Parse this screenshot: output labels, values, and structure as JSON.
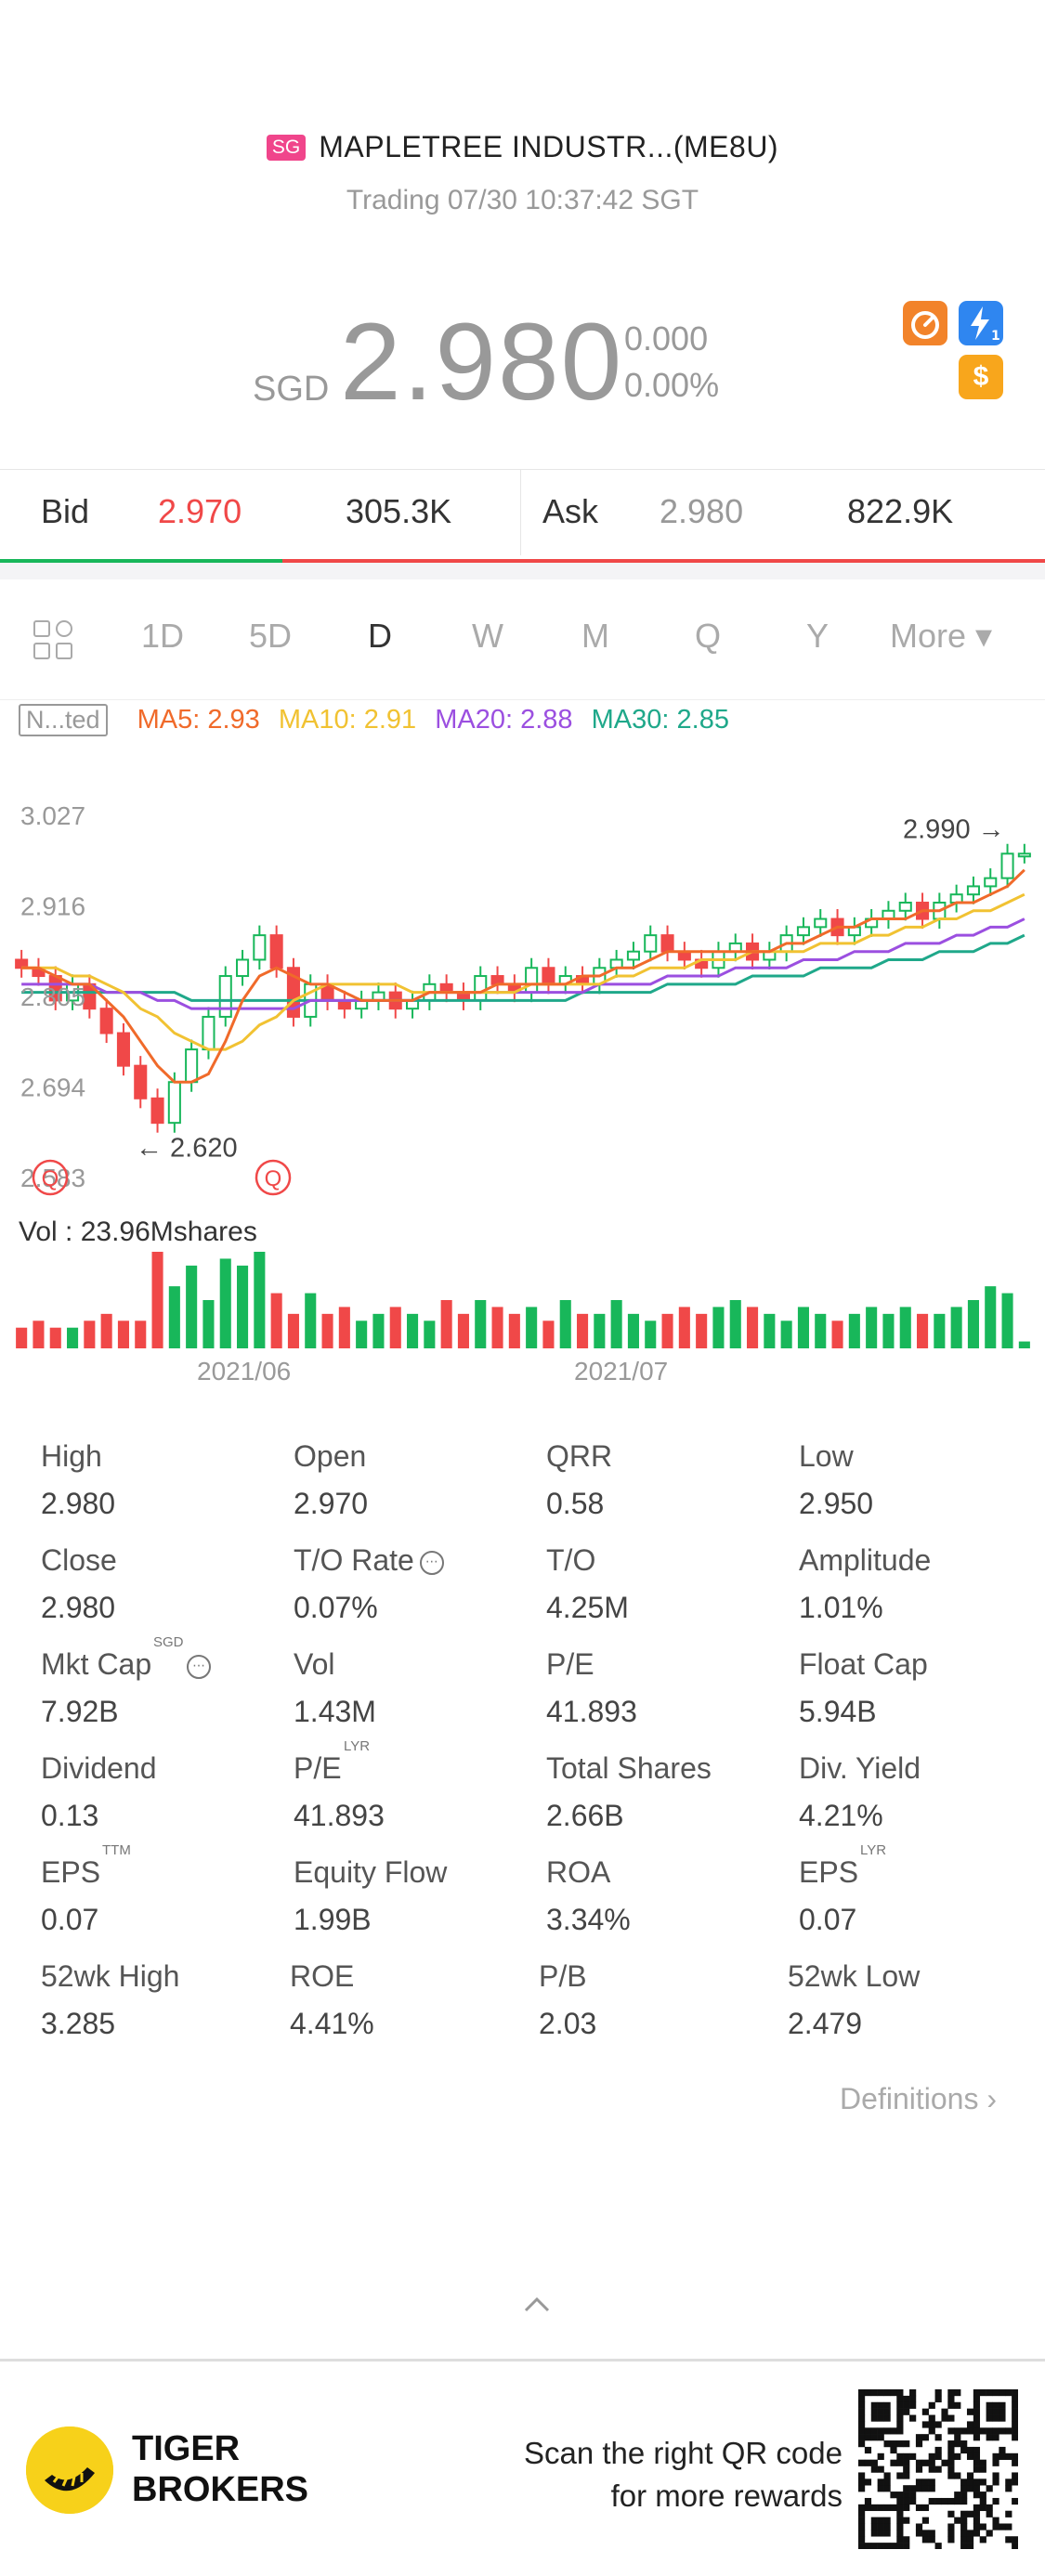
{
  "header": {
    "market_badge": "SG",
    "symbol": "MAPLETREE INDUSTR...(ME8U)",
    "status": "Trading 07/30 10:37:42 SGT"
  },
  "quote": {
    "currency": "SGD",
    "price": "2.980",
    "change": "0.000",
    "change_pct": "0.00%"
  },
  "icons": [
    "gauge-icon",
    "lightning-icon",
    "dollar-icon"
  ],
  "icon_labels": {
    "lightning": "1",
    "dollar": "$"
  },
  "colors": {
    "up": "#f04848",
    "down": "#18b75a",
    "ma5": "#f06a2a",
    "ma10": "#f1c232",
    "ma20": "#9b4fe0",
    "ma30": "#1fa88a"
  },
  "bid_ask": {
    "bid_label": "Bid",
    "bid_price": "2.970",
    "bid_size": "305.3K",
    "ask_label": "Ask",
    "ask_price": "2.980",
    "ask_size": "822.9K",
    "bid_fraction": 0.27
  },
  "tabs": [
    "1D",
    "5D",
    "D",
    "W",
    "M",
    "Q",
    "Y",
    "More ▾"
  ],
  "active_tab": "D",
  "ma": {
    "adjust_label": "N...ted",
    "ma5": "MA5: 2.93",
    "ma10": "MA10: 2.91",
    "ma20": "MA20: 2.88",
    "ma30": "MA30: 2.85"
  },
  "chart_data": {
    "type": "candlestick",
    "y_ticks": [
      "3.027",
      "2.916",
      "2.805",
      "2.694",
      "2.583"
    ],
    "ylim": [
      2.583,
      3.027
    ],
    "high_marker": "2.990",
    "low_marker": "← 2.620",
    "event_markers": [
      "Q",
      "Q"
    ],
    "volume_label": "Vol  : 23.96Mshares",
    "x_labels": [
      "2021/06",
      "2021/07"
    ],
    "closes": [
      2.84,
      2.83,
      2.8,
      2.82,
      2.79,
      2.76,
      2.72,
      2.68,
      2.65,
      2.7,
      2.74,
      2.78,
      2.83,
      2.85,
      2.88,
      2.84,
      2.78,
      2.82,
      2.8,
      2.79,
      2.8,
      2.81,
      2.79,
      2.8,
      2.82,
      2.81,
      2.8,
      2.83,
      2.82,
      2.81,
      2.84,
      2.82,
      2.83,
      2.82,
      2.84,
      2.85,
      2.86,
      2.88,
      2.86,
      2.85,
      2.84,
      2.86,
      2.87,
      2.85,
      2.86,
      2.88,
      2.89,
      2.9,
      2.88,
      2.89,
      2.9,
      2.91,
      2.92,
      2.9,
      2.92,
      2.93,
      2.94,
      2.95,
      2.98,
      2.98
    ],
    "volumes": [
      3,
      4,
      3,
      3,
      4,
      5,
      4,
      4,
      14,
      9,
      12,
      7,
      13,
      12,
      14,
      8,
      5,
      8,
      5,
      6,
      4,
      5,
      6,
      5,
      4,
      7,
      5,
      7,
      6,
      5,
      6,
      4,
      7,
      5,
      5,
      7,
      5,
      4,
      5,
      6,
      5,
      6,
      7,
      6,
      5,
      4,
      6,
      5,
      4,
      5,
      6,
      5,
      6,
      5,
      5,
      6,
      7,
      9,
      8,
      1
    ],
    "ma5": [
      2.84,
      2.84,
      2.83,
      2.82,
      2.82,
      2.8,
      2.78,
      2.75,
      2.72,
      2.7,
      2.7,
      2.71,
      2.75,
      2.8,
      2.83,
      2.84,
      2.83,
      2.82,
      2.82,
      2.81,
      2.8,
      2.8,
      2.8,
      2.8,
      2.81,
      2.81,
      2.81,
      2.81,
      2.82,
      2.82,
      2.82,
      2.82,
      2.82,
      2.83,
      2.83,
      2.84,
      2.84,
      2.85,
      2.86,
      2.86,
      2.86,
      2.86,
      2.86,
      2.86,
      2.86,
      2.87,
      2.87,
      2.88,
      2.89,
      2.89,
      2.9,
      2.9,
      2.9,
      2.91,
      2.91,
      2.92,
      2.92,
      2.93,
      2.94,
      2.96
    ],
    "ma10": [
      2.84,
      2.84,
      2.84,
      2.83,
      2.83,
      2.82,
      2.81,
      2.79,
      2.78,
      2.76,
      2.75,
      2.74,
      2.74,
      2.75,
      2.77,
      2.78,
      2.8,
      2.81,
      2.82,
      2.82,
      2.82,
      2.82,
      2.82,
      2.81,
      2.81,
      2.81,
      2.81,
      2.81,
      2.81,
      2.81,
      2.82,
      2.82,
      2.82,
      2.82,
      2.82,
      2.83,
      2.83,
      2.84,
      2.84,
      2.84,
      2.85,
      2.85,
      2.85,
      2.86,
      2.86,
      2.86,
      2.86,
      2.87,
      2.87,
      2.87,
      2.88,
      2.88,
      2.89,
      2.89,
      2.9,
      2.9,
      2.91,
      2.91,
      2.92,
      2.93
    ],
    "ma20": [
      2.82,
      2.82,
      2.82,
      2.82,
      2.82,
      2.81,
      2.81,
      2.81,
      2.8,
      2.8,
      2.79,
      2.79,
      2.79,
      2.79,
      2.79,
      2.79,
      2.79,
      2.8,
      2.8,
      2.8,
      2.8,
      2.8,
      2.8,
      2.8,
      2.81,
      2.81,
      2.81,
      2.81,
      2.81,
      2.81,
      2.81,
      2.81,
      2.81,
      2.81,
      2.82,
      2.82,
      2.82,
      2.82,
      2.83,
      2.83,
      2.83,
      2.83,
      2.84,
      2.84,
      2.84,
      2.84,
      2.85,
      2.85,
      2.85,
      2.86,
      2.86,
      2.86,
      2.87,
      2.87,
      2.87,
      2.88,
      2.88,
      2.89,
      2.89,
      2.9
    ],
    "ma30": [
      2.81,
      2.81,
      2.81,
      2.81,
      2.81,
      2.81,
      2.81,
      2.81,
      2.81,
      2.81,
      2.8,
      2.8,
      2.8,
      2.8,
      2.8,
      2.8,
      2.8,
      2.8,
      2.8,
      2.8,
      2.8,
      2.8,
      2.8,
      2.8,
      2.8,
      2.8,
      2.8,
      2.8,
      2.8,
      2.8,
      2.8,
      2.8,
      2.8,
      2.81,
      2.81,
      2.81,
      2.81,
      2.81,
      2.82,
      2.82,
      2.82,
      2.82,
      2.82,
      2.83,
      2.83,
      2.83,
      2.83,
      2.84,
      2.84,
      2.84,
      2.84,
      2.85,
      2.85,
      2.85,
      2.86,
      2.86,
      2.86,
      2.87,
      2.87,
      2.88
    ]
  },
  "stats": [
    {
      "label": "High",
      "value": "2.980"
    },
    {
      "label": "Open",
      "value": "2.970"
    },
    {
      "label": "QRR",
      "value": "0.58"
    },
    {
      "label": "Low",
      "value": "2.950"
    },
    {
      "label": "Close",
      "value": "2.980"
    },
    {
      "label": "T/O Rate",
      "value": "0.07%",
      "info": true
    },
    {
      "label": "T/O",
      "value": "4.25M"
    },
    {
      "label": "Amplitude",
      "value": "1.01%"
    },
    {
      "label": "Mkt Cap",
      "value": "7.92B",
      "sup": "SGD",
      "info": true
    },
    {
      "label": "Vol",
      "value": "1.43M"
    },
    {
      "label": "P/E",
      "value": "41.893"
    },
    {
      "label": "Float Cap",
      "value": "5.94B"
    },
    {
      "label": "Dividend",
      "value": "0.13"
    },
    {
      "label": "P/E",
      "value": "41.893",
      "sup": "LYR"
    },
    {
      "label": "Total Shares",
      "value": "2.66B"
    },
    {
      "label": "Div. Yield",
      "value": "4.21%"
    },
    {
      "label": "EPS",
      "value": "0.07",
      "sup": "TTM"
    },
    {
      "label": "Equity Flow",
      "value": "1.99B"
    },
    {
      "label": "ROA",
      "value": "3.34%"
    },
    {
      "label": "EPS",
      "value": "0.07",
      "sup": "LYR"
    },
    {
      "label": "52wk High",
      "value": "3.285"
    },
    {
      "label": "ROE",
      "value": "4.41%"
    },
    {
      "label": "P/B",
      "value": "2.03"
    },
    {
      "label": "52wk Low",
      "value": "2.479"
    }
  ],
  "definitions_label": "Definitions ›",
  "footer": {
    "brand_line1": "TIGER",
    "brand_line2": "BROKERS",
    "scan_line1": "Scan the right QR code",
    "scan_line2": "for more rewards"
  }
}
